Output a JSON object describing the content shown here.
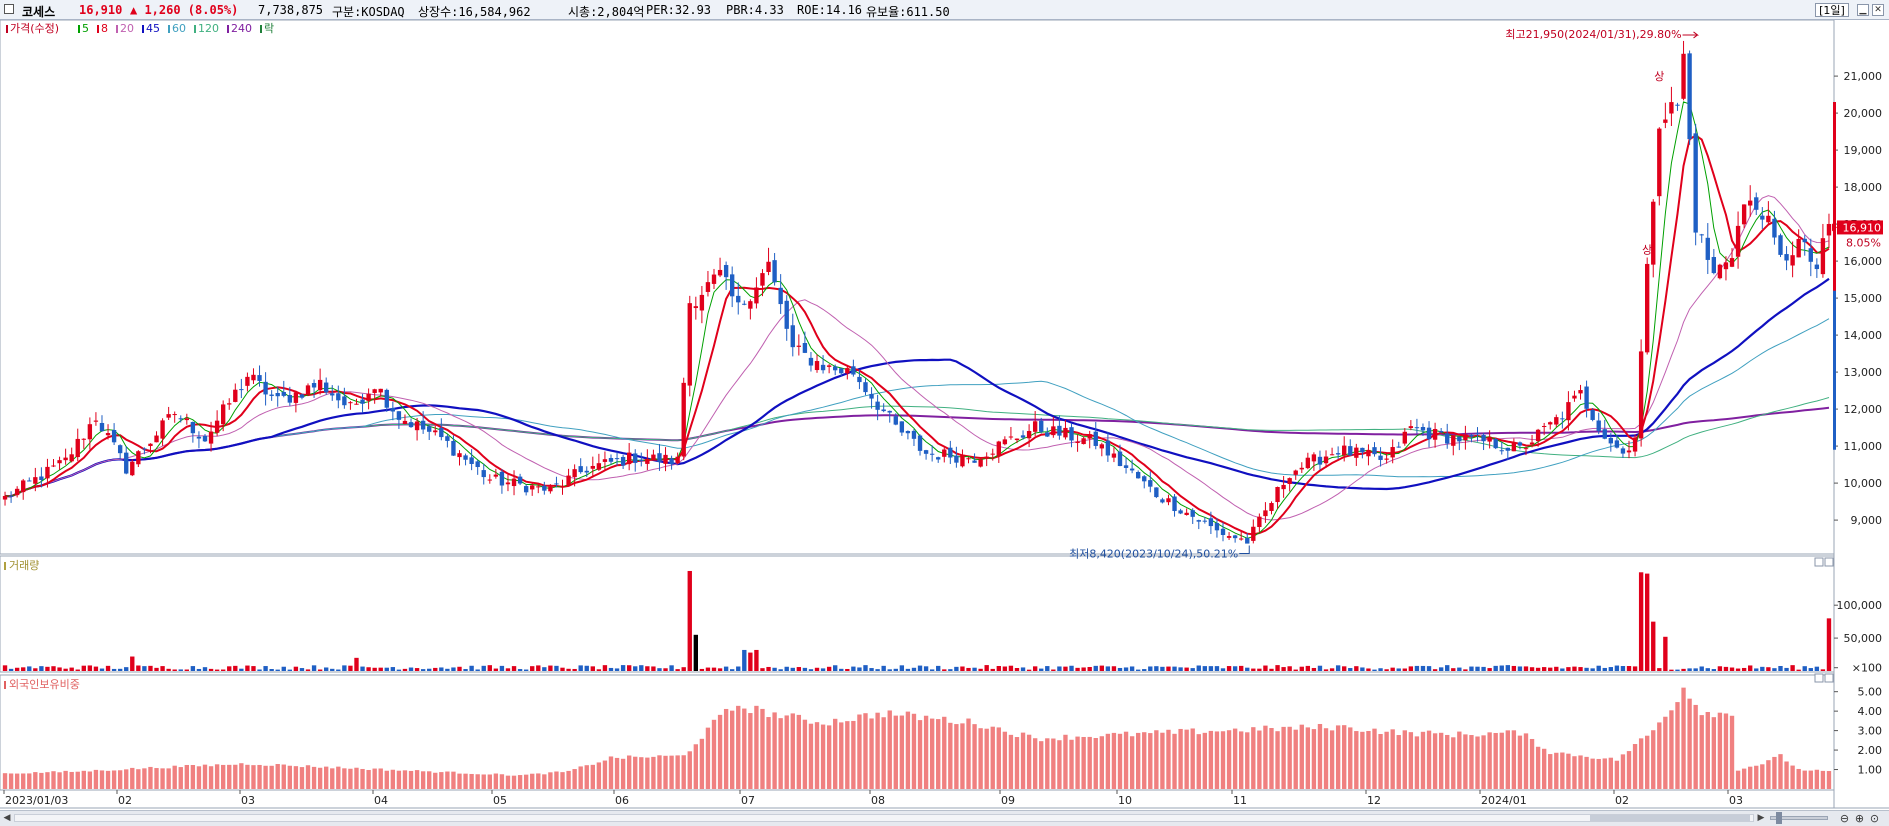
{
  "header": {
    "stock_name": "코세스",
    "price": "16,910",
    "change": "▲ 1,260 (8.05%)",
    "volume": "7,738,875",
    "market": "구분:KOSDAQ",
    "shares": "상장수:16,584,962",
    "market_cap": "시총:2,804억",
    "per": "PER:32.93",
    "pbr": "PBR:4.33",
    "roe": "ROE:14.16",
    "reserve": "유보율:611.50",
    "period": "[1일]",
    "minimize_icon": "minimize-icon",
    "close_icon": "close-icon"
  },
  "colors": {
    "up": "#e0001b",
    "down": "#1f5fc4",
    "ma5": "#00a000",
    "ma8": "#e0001b",
    "ma20": "#c060b0",
    "ma45": "#1010c0",
    "ma60": "#40a0c0",
    "ma120": "#40b080",
    "ma240": "#8020a0",
    "volume_up": "#e0001b",
    "volume_down": "#1f5fc4",
    "foreign": "#f08080"
  },
  "chart_data": [
    {
      "type": "candlestick",
      "legend": {
        "price": "가격(수정)",
        "ma": [
          "5",
          "8",
          "20",
          "45",
          "60",
          "120",
          "240"
        ],
        "extra": "락"
      },
      "y_ticks": [
        "21,000",
        "20,000",
        "19,000",
        "18,000",
        "17,000",
        "16,000",
        "15,000",
        "14,000",
        "13,000",
        "12,000",
        "11,000",
        "10,000",
        "9,000"
      ],
      "ylim": [
        8300,
        22300
      ],
      "x_ticks": [
        "2023/01/03",
        "02",
        "03",
        "04",
        "05",
        "06",
        "07",
        "08",
        "09",
        "10",
        "11",
        "12",
        "2024/01",
        "02",
        "03"
      ],
      "current_price_label": "16,910",
      "current_change_label": "8.05%",
      "high_annotation": "최고21,950(2024/01/31),29.80%",
      "low_annotation": "최저8,420(2023/10/24),50.21%",
      "limit_up_marks": [
        "상",
        "상"
      ],
      "checkpoints": [
        [
          0,
          9600
        ],
        [
          10,
          10600
        ],
        [
          15,
          11800
        ],
        [
          20,
          10400
        ],
        [
          28,
          11900
        ],
        [
          33,
          11200
        ],
        [
          40,
          12900
        ],
        [
          45,
          12200
        ],
        [
          52,
          12700
        ],
        [
          57,
          12000
        ],
        [
          61,
          12700
        ],
        [
          65,
          11800
        ],
        [
          72,
          11200
        ],
        [
          80,
          10100
        ],
        [
          90,
          9800
        ],
        [
          96,
          10400
        ],
        [
          104,
          10700
        ],
        [
          111,
          10600
        ],
        [
          113,
          14900
        ],
        [
          118,
          15600
        ],
        [
          121,
          14700
        ],
        [
          126,
          15900
        ],
        [
          130,
          13600
        ],
        [
          136,
          13100
        ],
        [
          140,
          13000
        ],
        [
          147,
          11500
        ],
        [
          152,
          10800
        ],
        [
          160,
          10700
        ],
        [
          170,
          11500
        ],
        [
          180,
          11100
        ],
        [
          190,
          9700
        ],
        [
          200,
          8700
        ],
        [
          205,
          8420
        ],
        [
          212,
          10300
        ],
        [
          220,
          10900
        ],
        [
          228,
          10600
        ],
        [
          232,
          11500
        ],
        [
          236,
          11300
        ],
        [
          245,
          11100
        ],
        [
          250,
          10900
        ],
        [
          256,
          11700
        ],
        [
          260,
          12400
        ],
        [
          264,
          11300
        ],
        [
          267,
          10800
        ],
        [
          269,
          11300
        ],
        [
          271,
          15700
        ],
        [
          273,
          19900
        ],
        [
          276,
          20200
        ],
        [
          277,
          21500
        ],
        [
          279,
          17000
        ],
        [
          282,
          15600
        ],
        [
          285,
          16300
        ],
        [
          287,
          17500
        ],
        [
          290,
          17400
        ],
        [
          293,
          16000
        ],
        [
          296,
          16500
        ],
        [
          299,
          15800
        ],
        [
          301,
          16900
        ]
      ],
      "n_candles": 302
    },
    {
      "type": "bar",
      "title": "거래량",
      "y_ticks": [
        "100,000",
        "50,000",
        "×100"
      ],
      "spikes": [
        [
          21,
          22
        ],
        [
          58,
          20
        ],
        [
          113,
          152
        ],
        [
          114,
          55
        ],
        [
          122,
          32
        ],
        [
          123,
          28
        ],
        [
          124,
          32
        ],
        [
          265,
          6
        ],
        [
          270,
          150
        ],
        [
          271,
          148
        ],
        [
          272,
          75
        ],
        [
          274,
          52
        ],
        [
          301,
          80
        ]
      ],
      "baseline": 5
    },
    {
      "type": "bar",
      "title": "외국인보유비중",
      "y_ticks": [
        "5.00",
        "4.00",
        "3.00",
        "2.00",
        "1.00"
      ],
      "ylim": [
        0,
        5.6
      ],
      "checkpoints": [
        [
          0,
          0.8
        ],
        [
          12,
          0.9
        ],
        [
          25,
          1.1
        ],
        [
          40,
          1.3
        ],
        [
          55,
          1.1
        ],
        [
          70,
          0.9
        ],
        [
          85,
          0.7
        ],
        [
          93,
          0.9
        ],
        [
          100,
          1.6
        ],
        [
          112,
          1.7
        ],
        [
          118,
          3.7
        ],
        [
          121,
          4.3
        ],
        [
          126,
          3.9
        ],
        [
          135,
          3.4
        ],
        [
          145,
          3.9
        ],
        [
          160,
          3.4
        ],
        [
          170,
          2.6
        ],
        [
          185,
          2.8
        ],
        [
          200,
          3.0
        ],
        [
          220,
          3.2
        ],
        [
          230,
          2.9
        ],
        [
          240,
          2.8
        ],
        [
          250,
          2.9
        ],
        [
          255,
          1.9
        ],
        [
          266,
          1.5
        ],
        [
          272,
          3.0
        ],
        [
          275,
          4.2
        ],
        [
          277,
          5.2
        ],
        [
          280,
          4.0
        ],
        [
          285,
          3.8
        ],
        [
          286,
          1.0
        ],
        [
          290,
          1.3
        ],
        [
          293,
          1.7
        ],
        [
          296,
          1.0
        ],
        [
          301,
          0.9
        ]
      ]
    }
  ]
}
